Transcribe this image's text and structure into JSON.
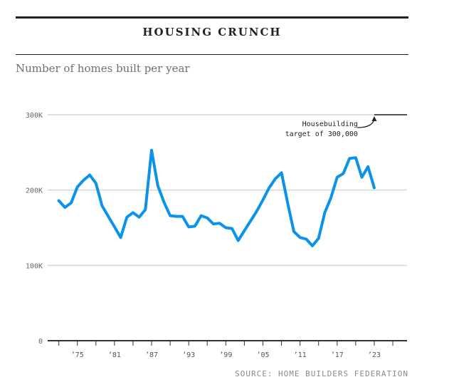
{
  "header": {
    "top_strip": "··· ·· ···· ·· ·······",
    "title": "HOUSING CRUNCH",
    "subtitle": "Number of homes built per year"
  },
  "source": "SOURCE: HOME BUILDERS FEDERATION",
  "colors": {
    "line": "#0a93e8",
    "grid": "#d6d6d6",
    "axis": "#333333",
    "target": "#555555"
  },
  "chart_data": {
    "type": "line",
    "title": "HOUSING CRUNCH",
    "subtitle": "Number of homes built per year",
    "xlabel": "",
    "ylabel": "",
    "ylim": [
      0,
      300000
    ],
    "xlim": [
      1971,
      2027
    ],
    "y_ticks": [
      0,
      100000,
      200000,
      300000
    ],
    "y_tick_labels": [
      "0",
      "100K",
      "200K",
      "300K"
    ],
    "x_ticks": [
      1975,
      1981,
      1987,
      1993,
      1999,
      2005,
      2011,
      2017,
      2023
    ],
    "x_tick_labels": [
      "’75",
      "’81",
      "’87",
      "’93",
      "’99",
      "’05",
      "’11",
      "’17",
      "’23"
    ],
    "grid": true,
    "series": [
      {
        "x": [
          1972,
          1973,
          1974,
          1975,
          1976,
          1977,
          1978,
          1979,
          1980,
          1981,
          1982,
          1983,
          1984,
          1985,
          1986,
          1987,
          1988,
          1989,
          1990,
          1991,
          1992,
          1993,
          1994,
          1995,
          1996,
          1997,
          1998,
          1999,
          2000,
          2001,
          2002,
          2003,
          2004,
          2005,
          2006,
          2007,
          2008,
          2009,
          2010,
          2011,
          2012,
          2013,
          2014,
          2015,
          2016,
          2017,
          2018,
          2019,
          2020,
          2021,
          2022,
          2023
        ],
        "values": [
          186000,
          177000,
          183000,
          204000,
          213000,
          220000,
          209000,
          179000,
          165000,
          151000,
          137000,
          164000,
          170000,
          164000,
          174000,
          253000,
          206000,
          184000,
          166000,
          165000,
          165000,
          151000,
          152000,
          166000,
          163000,
          155000,
          156000,
          150000,
          149000,
          133000,
          146000,
          159000,
          172000,
          187000,
          203000,
          215000,
          223000,
          183000,
          145000,
          137000,
          135000,
          126000,
          136000,
          170000,
          190000,
          217000,
          222000,
          242000,
          243000,
          217000,
          231000,
          203000
        ]
      }
    ],
    "annotations": [
      {
        "text_lines": [
          "Housebuilding",
          "target of 300,000"
        ],
        "value": 300000,
        "x_from": 2023,
        "x_to": 2027
      }
    ]
  }
}
